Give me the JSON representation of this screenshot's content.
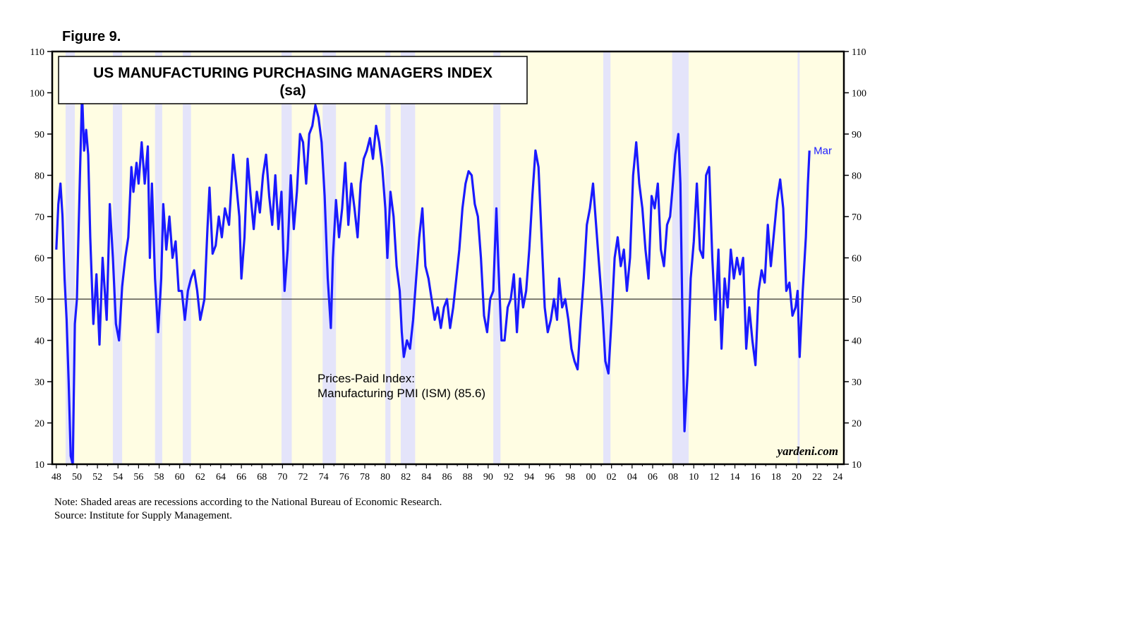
{
  "figure_label": "Figure 9.",
  "note": "Note: Shaded areas are recessions according to the National Bureau of Economic Research.",
  "source": "Source: Institute for Supply Management.",
  "colors": {
    "plot_background": "#fffde3",
    "recession_band": "#e4e4fa",
    "series_line": "#1a1aff",
    "axis": "#000000"
  },
  "chart_data": {
    "type": "line",
    "title": "US MANUFACTURING PURCHASING MANAGERS INDEX",
    "subtitle": "(sa)",
    "annotation_line1": "Prices-Paid Index:",
    "annotation_line2": "Manufacturing PMI (ISM) (85.6)",
    "last_point_label": "Mar",
    "credit": "yardeni.com",
    "reference_line": 50,
    "ylim": [
      10,
      110
    ],
    "xlim": [
      1947.6,
      2024.6
    ],
    "y_ticks": [
      10,
      20,
      30,
      40,
      50,
      60,
      70,
      80,
      90,
      100,
      110
    ],
    "x_tick_labels": [
      "48",
      "50",
      "52",
      "54",
      "56",
      "58",
      "60",
      "62",
      "64",
      "66",
      "68",
      "70",
      "72",
      "74",
      "76",
      "78",
      "80",
      "82",
      "84",
      "86",
      "88",
      "90",
      "92",
      "94",
      "96",
      "98",
      "00",
      "02",
      "04",
      "06",
      "08",
      "10",
      "12",
      "14",
      "16",
      "18",
      "20",
      "22",
      "24"
    ],
    "recessions": [
      [
        1948.9,
        1949.8
      ],
      [
        1953.5,
        1954.4
      ],
      [
        1957.6,
        1958.3
      ],
      [
        1960.3,
        1961.1
      ],
      [
        1969.9,
        1970.9
      ],
      [
        1973.9,
        1975.2
      ],
      [
        1980.0,
        1980.5
      ],
      [
        1981.5,
        1982.9
      ],
      [
        1990.5,
        1991.2
      ],
      [
        2001.2,
        2001.9
      ],
      [
        2007.9,
        2009.5
      ],
      [
        2020.1,
        2020.3
      ]
    ],
    "series": [
      {
        "name": "Prices-Paid Index",
        "values": [
          [
            1948.0,
            62
          ],
          [
            1948.2,
            73
          ],
          [
            1948.4,
            78
          ],
          [
            1948.6,
            70
          ],
          [
            1948.8,
            55
          ],
          [
            1949.0,
            45
          ],
          [
            1949.2,
            30
          ],
          [
            1949.4,
            12
          ],
          [
            1949.6,
            10
          ],
          [
            1949.8,
            44
          ],
          [
            1950.0,
            50
          ],
          [
            1950.3,
            80
          ],
          [
            1950.5,
            100
          ],
          [
            1950.7,
            86
          ],
          [
            1950.9,
            91
          ],
          [
            1951.1,
            85
          ],
          [
            1951.3,
            65
          ],
          [
            1951.6,
            44
          ],
          [
            1951.9,
            56
          ],
          [
            1952.2,
            39
          ],
          [
            1952.5,
            60
          ],
          [
            1952.9,
            45
          ],
          [
            1953.2,
            73
          ],
          [
            1953.5,
            60
          ],
          [
            1953.8,
            44
          ],
          [
            1954.1,
            40
          ],
          [
            1954.4,
            53
          ],
          [
            1954.7,
            60
          ],
          [
            1955.0,
            65
          ],
          [
            1955.3,
            82
          ],
          [
            1955.5,
            76
          ],
          [
            1955.8,
            83
          ],
          [
            1956.0,
            78
          ],
          [
            1956.3,
            88
          ],
          [
            1956.6,
            78
          ],
          [
            1956.9,
            87
          ],
          [
            1957.1,
            60
          ],
          [
            1957.3,
            78
          ],
          [
            1957.6,
            55
          ],
          [
            1957.9,
            42
          ],
          [
            1958.2,
            55
          ],
          [
            1958.4,
            73
          ],
          [
            1958.7,
            62
          ],
          [
            1959.0,
            70
          ],
          [
            1959.3,
            60
          ],
          [
            1959.6,
            64
          ],
          [
            1959.9,
            52
          ],
          [
            1960.2,
            52
          ],
          [
            1960.5,
            45
          ],
          [
            1960.8,
            52
          ],
          [
            1961.1,
            55
          ],
          [
            1961.4,
            57
          ],
          [
            1961.7,
            52
          ],
          [
            1962.0,
            45
          ],
          [
            1962.4,
            50
          ],
          [
            1962.7,
            67
          ],
          [
            1962.9,
            77
          ],
          [
            1963.2,
            61
          ],
          [
            1963.5,
            63
          ],
          [
            1963.8,
            70
          ],
          [
            1964.1,
            65
          ],
          [
            1964.4,
            72
          ],
          [
            1964.8,
            68
          ],
          [
            1965.2,
            85
          ],
          [
            1965.5,
            78
          ],
          [
            1965.8,
            70
          ],
          [
            1966.0,
            55
          ],
          [
            1966.3,
            65
          ],
          [
            1966.6,
            84
          ],
          [
            1966.9,
            75
          ],
          [
            1967.2,
            67
          ],
          [
            1967.5,
            76
          ],
          [
            1967.8,
            71
          ],
          [
            1968.1,
            80
          ],
          [
            1968.4,
            85
          ],
          [
            1968.7,
            75
          ],
          [
            1969.0,
            68
          ],
          [
            1969.3,
            80
          ],
          [
            1969.6,
            67
          ],
          [
            1969.9,
            76
          ],
          [
            1970.2,
            52
          ],
          [
            1970.5,
            62
          ],
          [
            1970.8,
            80
          ],
          [
            1971.1,
            67
          ],
          [
            1971.4,
            76
          ],
          [
            1971.7,
            90
          ],
          [
            1972.0,
            88
          ],
          [
            1972.3,
            78
          ],
          [
            1972.6,
            90
          ],
          [
            1972.9,
            92
          ],
          [
            1973.2,
            97
          ],
          [
            1973.5,
            94
          ],
          [
            1973.8,
            88
          ],
          [
            1974.1,
            75
          ],
          [
            1974.4,
            55
          ],
          [
            1974.7,
            43
          ],
          [
            1974.9,
            60
          ],
          [
            1975.2,
            74
          ],
          [
            1975.5,
            65
          ],
          [
            1975.8,
            72
          ],
          [
            1976.1,
            83
          ],
          [
            1976.4,
            68
          ],
          [
            1976.7,
            78
          ],
          [
            1977.0,
            72
          ],
          [
            1977.3,
            65
          ],
          [
            1977.6,
            78
          ],
          [
            1977.9,
            84
          ],
          [
            1978.2,
            86
          ],
          [
            1978.5,
            89
          ],
          [
            1978.8,
            84
          ],
          [
            1979.1,
            92
          ],
          [
            1979.4,
            88
          ],
          [
            1979.7,
            82
          ],
          [
            1980.0,
            72
          ],
          [
            1980.2,
            60
          ],
          [
            1980.5,
            76
          ],
          [
            1980.8,
            70
          ],
          [
            1981.1,
            58
          ],
          [
            1981.4,
            52
          ],
          [
            1981.6,
            42
          ],
          [
            1981.8,
            36
          ],
          [
            1982.1,
            40
          ],
          [
            1982.4,
            38
          ],
          [
            1982.7,
            45
          ],
          [
            1983.0,
            55
          ],
          [
            1983.3,
            65
          ],
          [
            1983.6,
            72
          ],
          [
            1983.9,
            58
          ],
          [
            1984.2,
            55
          ],
          [
            1984.5,
            50
          ],
          [
            1984.8,
            45
          ],
          [
            1985.1,
            48
          ],
          [
            1985.4,
            43
          ],
          [
            1985.7,
            48
          ],
          [
            1986.0,
            50
          ],
          [
            1986.3,
            43
          ],
          [
            1986.6,
            48
          ],
          [
            1986.9,
            55
          ],
          [
            1987.2,
            62
          ],
          [
            1987.5,
            72
          ],
          [
            1987.8,
            78
          ],
          [
            1988.1,
            81
          ],
          [
            1988.4,
            80
          ],
          [
            1988.7,
            73
          ],
          [
            1989.0,
            70
          ],
          [
            1989.3,
            60
          ],
          [
            1989.6,
            46
          ],
          [
            1989.9,
            42
          ],
          [
            1990.2,
            50
          ],
          [
            1990.5,
            52
          ],
          [
            1990.8,
            72
          ],
          [
            1991.0,
            58
          ],
          [
            1991.3,
            40
          ],
          [
            1991.6,
            40
          ],
          [
            1991.9,
            48
          ],
          [
            1992.2,
            50
          ],
          [
            1992.5,
            56
          ],
          [
            1992.8,
            42
          ],
          [
            1993.1,
            55
          ],
          [
            1993.4,
            48
          ],
          [
            1993.7,
            52
          ],
          [
            1994.0,
            62
          ],
          [
            1994.3,
            75
          ],
          [
            1994.6,
            86
          ],
          [
            1994.9,
            82
          ],
          [
            1995.2,
            65
          ],
          [
            1995.5,
            48
          ],
          [
            1995.8,
            42
          ],
          [
            1996.1,
            45
          ],
          [
            1996.4,
            50
          ],
          [
            1996.7,
            45
          ],
          [
            1996.9,
            55
          ],
          [
            1997.2,
            48
          ],
          [
            1997.5,
            50
          ],
          [
            1997.8,
            45
          ],
          [
            1998.1,
            38
          ],
          [
            1998.4,
            35
          ],
          [
            1998.7,
            33
          ],
          [
            1999.0,
            45
          ],
          [
            1999.3,
            55
          ],
          [
            1999.6,
            68
          ],
          [
            1999.9,
            72
          ],
          [
            2000.2,
            78
          ],
          [
            2000.5,
            68
          ],
          [
            2000.8,
            58
          ],
          [
            2001.1,
            48
          ],
          [
            2001.4,
            35
          ],
          [
            2001.7,
            32
          ],
          [
            2002.0,
            45
          ],
          [
            2002.3,
            60
          ],
          [
            2002.6,
            65
          ],
          [
            2002.9,
            58
          ],
          [
            2003.2,
            62
          ],
          [
            2003.5,
            52
          ],
          [
            2003.8,
            60
          ],
          [
            2004.1,
            80
          ],
          [
            2004.4,
            88
          ],
          [
            2004.7,
            78
          ],
          [
            2005.0,
            72
          ],
          [
            2005.3,
            62
          ],
          [
            2005.6,
            55
          ],
          [
            2005.9,
            75
          ],
          [
            2006.2,
            72
          ],
          [
            2006.5,
            78
          ],
          [
            2006.8,
            62
          ],
          [
            2007.1,
            58
          ],
          [
            2007.4,
            68
          ],
          [
            2007.7,
            70
          ],
          [
            2007.9,
            76
          ],
          [
            2008.2,
            85
          ],
          [
            2008.5,
            90
          ],
          [
            2008.7,
            78
          ],
          [
            2008.9,
            45
          ],
          [
            2009.1,
            18
          ],
          [
            2009.4,
            32
          ],
          [
            2009.7,
            55
          ],
          [
            2010.0,
            64
          ],
          [
            2010.3,
            78
          ],
          [
            2010.6,
            62
          ],
          [
            2010.9,
            60
          ],
          [
            2011.2,
            80
          ],
          [
            2011.5,
            82
          ],
          [
            2011.8,
            60
          ],
          [
            2012.1,
            45
          ],
          [
            2012.4,
            62
          ],
          [
            2012.7,
            38
          ],
          [
            2013.0,
            55
          ],
          [
            2013.3,
            48
          ],
          [
            2013.6,
            62
          ],
          [
            2013.9,
            55
          ],
          [
            2014.2,
            60
          ],
          [
            2014.5,
            56
          ],
          [
            2014.8,
            60
          ],
          [
            2015.1,
            38
          ],
          [
            2015.4,
            48
          ],
          [
            2015.7,
            40
          ],
          [
            2016.0,
            34
          ],
          [
            2016.3,
            52
          ],
          [
            2016.6,
            57
          ],
          [
            2016.9,
            54
          ],
          [
            2017.2,
            68
          ],
          [
            2017.5,
            58
          ],
          [
            2017.8,
            66
          ],
          [
            2018.1,
            74
          ],
          [
            2018.4,
            79
          ],
          [
            2018.7,
            72
          ],
          [
            2019.0,
            52
          ],
          [
            2019.3,
            54
          ],
          [
            2019.6,
            46
          ],
          [
            2019.9,
            48
          ],
          [
            2020.1,
            52
          ],
          [
            2020.3,
            36
          ],
          [
            2020.6,
            52
          ],
          [
            2020.9,
            65
          ],
          [
            2021.1,
            78
          ],
          [
            2021.25,
            86
          ]
        ]
      }
    ]
  }
}
